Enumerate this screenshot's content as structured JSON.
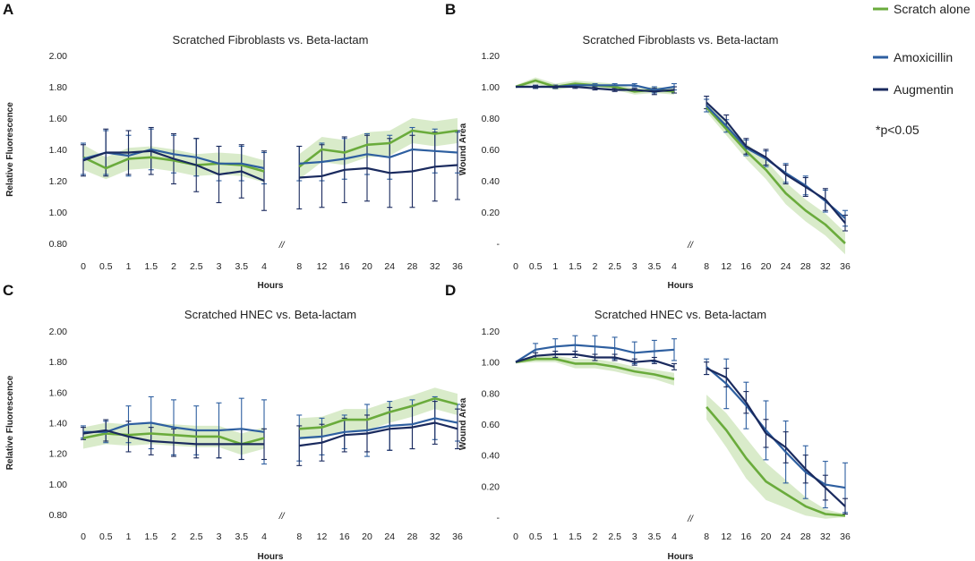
{
  "colors": {
    "scratch": "#6aab3c",
    "amox": "#2e5fa0",
    "aug": "#1a2a5e",
    "band": "#cfe6bd"
  },
  "legend": [
    {
      "label": "Scratch alone",
      "color": "#6aab3c"
    },
    {
      "label": "Amoxicillin",
      "color": "#2e5fa0"
    },
    {
      "label": "Augmentin",
      "color": "#1a2a5e"
    }
  ],
  "significance_note": "*p<0.05",
  "chart_data": [
    {
      "panel": "A",
      "type": "line",
      "title": "Scratched Fibroblasts vs. Beta-lactam",
      "xlabel": "Hours",
      "ylabel": "Relative Fluorescence",
      "categories": [
        "0",
        "0.5",
        "1",
        "1.5",
        "2",
        "2.5",
        "3",
        "3.5",
        "4",
        "8",
        "12",
        "16",
        "20",
        "24",
        "28",
        "32",
        "36"
      ],
      "axis_break_label": "//",
      "ytick_labels": [
        "0.80",
        "1.00",
        "1.20",
        "1.40",
        "1.60",
        "1.80",
        "2.00"
      ],
      "ylim": [
        0.8,
        2.0
      ],
      "series": [
        {
          "name": "Scratch alone",
          "values": [
            1.35,
            1.28,
            1.34,
            1.35,
            1.33,
            1.3,
            1.31,
            1.3,
            1.26,
            1.29,
            1.4,
            1.38,
            1.43,
            1.44,
            1.52,
            1.5,
            1.52
          ],
          "band": [
            0.08,
            0.07,
            0.07,
            0.07,
            0.07,
            0.07,
            0.07,
            0.07,
            0.07,
            0.08,
            0.08,
            0.08,
            0.08,
            0.08,
            0.08,
            0.08,
            0.08
          ]
        },
        {
          "name": "Amoxicillin",
          "values": [
            1.34,
            1.38,
            1.36,
            1.4,
            1.37,
            1.35,
            1.31,
            1.31,
            1.28,
            1.31,
            1.32,
            1.34,
            1.37,
            1.35,
            1.4,
            1.39,
            1.38
          ],
          "error": [
            0.1,
            0.14,
            0.13,
            0.13,
            0.12,
            0.12,
            0.11,
            0.11,
            0.1,
            0.11,
            0.12,
            0.13,
            0.13,
            0.14,
            0.14,
            0.14,
            0.13
          ]
        },
        {
          "name": "Augmentin",
          "values": [
            1.33,
            1.38,
            1.38,
            1.39,
            1.34,
            1.3,
            1.24,
            1.26,
            1.2,
            1.22,
            1.23,
            1.27,
            1.28,
            1.25,
            1.26,
            1.29,
            1.3
          ],
          "error": [
            0.1,
            0.15,
            0.14,
            0.15,
            0.16,
            0.17,
            0.18,
            0.17,
            0.19,
            0.2,
            0.2,
            0.21,
            0.21,
            0.22,
            0.23,
            0.22,
            0.22
          ]
        }
      ]
    },
    {
      "panel": "B",
      "type": "line",
      "title": "Scratched Fibroblasts vs. Beta-lactam",
      "xlabel": "Hours",
      "ylabel": "Wound Area",
      "categories": [
        "0",
        "0.5",
        "1",
        "1.5",
        "2",
        "2.5",
        "3",
        "3.5",
        "4",
        "8",
        "12",
        "16",
        "20",
        "24",
        "28",
        "32",
        "36"
      ],
      "axis_break_label": "//",
      "ytick_labels": [
        "-",
        "0.20",
        "0.40",
        "0.60",
        "0.80",
        "1.00",
        "1.20"
      ],
      "ylim": [
        0,
        1.2
      ],
      "series": [
        {
          "name": "Scratch alone",
          "values": [
            1.0,
            1.04,
            1.0,
            1.02,
            1.01,
            1.0,
            0.97,
            0.98,
            0.97,
            0.87,
            0.73,
            0.59,
            0.47,
            0.32,
            0.21,
            0.12,
            0.0
          ],
          "band": [
            0.01,
            0.02,
            0.02,
            0.02,
            0.02,
            0.02,
            0.02,
            0.02,
            0.02,
            0.03,
            0.04,
            0.05,
            0.06,
            0.07,
            0.07,
            0.07,
            0.07
          ]
        },
        {
          "name": "Amoxicillin",
          "values": [
            1.0,
            1.0,
            1.0,
            1.01,
            1.01,
            1.01,
            1.01,
            0.98,
            1.0,
            0.88,
            0.75,
            0.61,
            0.54,
            0.45,
            0.37,
            0.27,
            0.16
          ],
          "error": [
            0.0,
            0.01,
            0.01,
            0.01,
            0.01,
            0.01,
            0.01,
            0.02,
            0.02,
            0.04,
            0.04,
            0.05,
            0.05,
            0.06,
            0.06,
            0.07,
            0.05
          ]
        },
        {
          "name": "Augmentin",
          "values": [
            1.0,
            1.0,
            1.0,
            1.0,
            0.99,
            0.98,
            0.98,
            0.97,
            0.98,
            0.9,
            0.78,
            0.62,
            0.55,
            0.44,
            0.36,
            0.28,
            0.13
          ],
          "error": [
            0.0,
            0.01,
            0.01,
            0.01,
            0.01,
            0.01,
            0.01,
            0.02,
            0.02,
            0.04,
            0.04,
            0.05,
            0.05,
            0.06,
            0.06,
            0.07,
            0.05
          ]
        }
      ]
    },
    {
      "panel": "C",
      "type": "line",
      "title": "Scratched HNEC vs. Beta-lactam",
      "xlabel": "Hours",
      "ylabel": "Relative Fluorescence",
      "categories": [
        "0",
        "0.5",
        "1",
        "1.5",
        "2",
        "2.5",
        "3",
        "3.5",
        "4",
        "8",
        "12",
        "16",
        "20",
        "24",
        "28",
        "32",
        "36"
      ],
      "axis_break_label": "//",
      "ytick_labels": [
        "0.80",
        "1.00",
        "1.20",
        "1.40",
        "1.60",
        "1.80",
        "2.00"
      ],
      "ylim": [
        0.8,
        2.0
      ],
      "series": [
        {
          "name": "Scratch alone",
          "values": [
            1.3,
            1.33,
            1.32,
            1.33,
            1.32,
            1.31,
            1.31,
            1.26,
            1.3,
            1.36,
            1.37,
            1.42,
            1.42,
            1.47,
            1.51,
            1.56,
            1.52
          ],
          "band": [
            0.07,
            0.07,
            0.07,
            0.07,
            0.07,
            0.07,
            0.07,
            0.07,
            0.07,
            0.07,
            0.07,
            0.07,
            0.07,
            0.07,
            0.07,
            0.07,
            0.07
          ]
        },
        {
          "name": "Amoxicillin",
          "values": [
            1.34,
            1.34,
            1.39,
            1.4,
            1.37,
            1.35,
            1.35,
            1.36,
            1.34,
            1.3,
            1.31,
            1.34,
            1.35,
            1.38,
            1.39,
            1.43,
            1.4
          ],
          "error": [
            0.04,
            0.07,
            0.12,
            0.17,
            0.18,
            0.16,
            0.18,
            0.2,
            0.21,
            0.15,
            0.12,
            0.11,
            0.17,
            0.16,
            0.16,
            0.14,
            0.12
          ]
        },
        {
          "name": "Augmentin",
          "values": [
            1.33,
            1.35,
            1.31,
            1.28,
            1.27,
            1.26,
            1.26,
            1.26,
            1.26,
            1.25,
            1.27,
            1.32,
            1.33,
            1.36,
            1.37,
            1.4,
            1.36
          ],
          "error": [
            0.04,
            0.07,
            0.1,
            0.09,
            0.09,
            0.09,
            0.09,
            0.1,
            0.1,
            0.13,
            0.12,
            0.11,
            0.12,
            0.14,
            0.14,
            0.14,
            0.13
          ]
        }
      ]
    },
    {
      "panel": "D",
      "type": "line",
      "title": "Scratched HNEC vs. Beta-lactam",
      "xlabel": "Hours",
      "ylabel": "Wound Area",
      "categories": [
        "0",
        "0.5",
        "1",
        "1.5",
        "2",
        "2.5",
        "3",
        "3.5",
        "4",
        "8",
        "12",
        "16",
        "20",
        "24",
        "28",
        "32",
        "36"
      ],
      "axis_break_label": "//",
      "ytick_labels": [
        "-",
        "0.20",
        "0.40",
        "0.60",
        "0.80",
        "1.00",
        "1.20"
      ],
      "ylim": [
        0,
        1.2
      ],
      "series": [
        {
          "name": "Scratch alone",
          "values": [
            1.0,
            1.02,
            1.02,
            0.99,
            0.99,
            0.97,
            0.94,
            0.92,
            0.89,
            0.71,
            0.56,
            0.38,
            0.23,
            0.15,
            0.07,
            0.02,
            0.01
          ],
          "band": [
            0.01,
            0.02,
            0.02,
            0.03,
            0.03,
            0.03,
            0.03,
            0.03,
            0.04,
            0.08,
            0.11,
            0.13,
            0.12,
            0.09,
            0.06,
            0.03,
            0.01
          ]
        },
        {
          "name": "Amoxicillin",
          "values": [
            1.0,
            1.08,
            1.1,
            1.11,
            1.1,
            1.09,
            1.06,
            1.07,
            1.08,
            0.97,
            0.86,
            0.72,
            0.56,
            0.42,
            0.29,
            0.21,
            0.19
          ],
          "error": [
            0.0,
            0.04,
            0.05,
            0.06,
            0.07,
            0.07,
            0.07,
            0.07,
            0.07,
            0.05,
            0.16,
            0.15,
            0.19,
            0.2,
            0.17,
            0.15,
            0.16
          ]
        },
        {
          "name": "Augmentin",
          "values": [
            1.0,
            1.04,
            1.05,
            1.05,
            1.03,
            1.03,
            1.0,
            1.01,
            0.97,
            0.96,
            0.9,
            0.74,
            0.54,
            0.45,
            0.31,
            0.19,
            0.07
          ],
          "error": [
            0.0,
            0.02,
            0.02,
            0.02,
            0.02,
            0.02,
            0.02,
            0.02,
            0.02,
            0.04,
            0.06,
            0.07,
            0.09,
            0.1,
            0.09,
            0.08,
            0.05
          ]
        }
      ]
    }
  ]
}
